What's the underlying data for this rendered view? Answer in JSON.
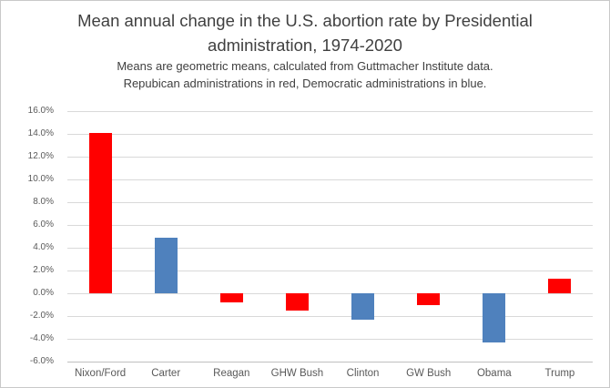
{
  "chart_data": {
    "type": "bar",
    "title": "Mean annual change in the U.S. abortion rate by Presidential administration, 1974-2020",
    "subtitle_lines": [
      "Means are geometric means, calculated from Guttmacher Institute data.",
      "Repubican administrations in red, Democratic administrations in blue."
    ],
    "categories": [
      "Nixon/Ford",
      "Carter",
      "Reagan",
      "GHW Bush",
      "Clinton",
      "GW Bush",
      "Obama",
      "Trump"
    ],
    "values": [
      14.1,
      4.9,
      -0.8,
      -1.5,
      -2.3,
      -1.0,
      -4.3,
      1.3
    ],
    "parties": [
      "republican",
      "democratic",
      "republican",
      "republican",
      "democratic",
      "republican",
      "democratic",
      "republican"
    ],
    "colors": {
      "republican": "#FF0000",
      "democratic": "#4F81BD"
    },
    "xlabel": "",
    "ylabel": "",
    "ylim": [
      -6,
      16
    ],
    "yticks": [
      16,
      14,
      12,
      10,
      8,
      6,
      4,
      2,
      0,
      -2,
      -4,
      -6
    ],
    "ytick_labels": [
      "16.0%",
      "14.0%",
      "12.0%",
      "10.0%",
      "8.0%",
      "6.0%",
      "4.0%",
      "2.0%",
      "0.0%",
      "-2.0%",
      "-4.0%",
      "-6.0%"
    ],
    "grid": true,
    "legend": "none"
  }
}
